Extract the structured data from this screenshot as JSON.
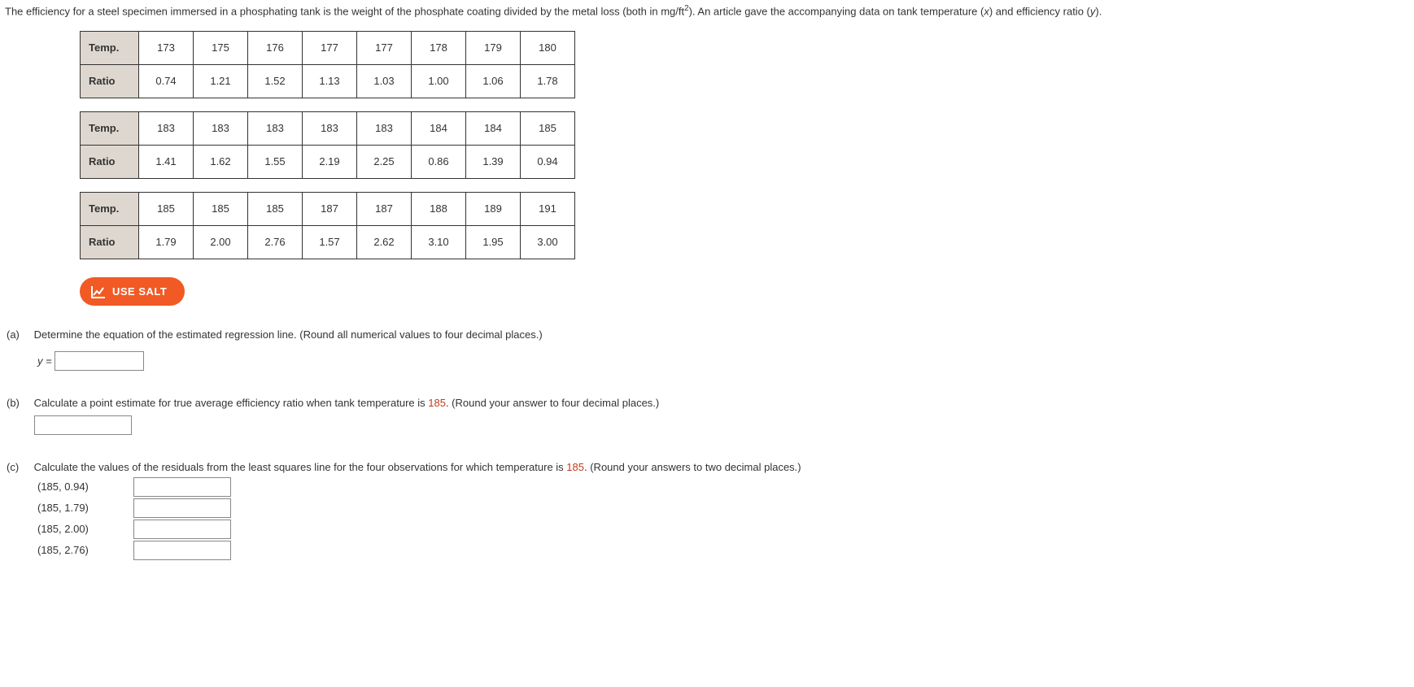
{
  "intro": {
    "text_before_sup": "The efficiency for a steel specimen immersed in a phosphating tank is the weight of the phosphate coating divided by the metal loss (both in mg/ft",
    "sup": "2",
    "text_after_sup": "). An article gave the accompanying data on tank temperature (",
    "var1": "x",
    "mid": ") and efficiency ratio (",
    "var2": "y",
    "end": ")."
  },
  "row_labels": {
    "temp": "Temp.",
    "ratio": "Ratio"
  },
  "tables": [
    {
      "temp": [
        "173",
        "175",
        "176",
        "177",
        "177",
        "178",
        "179",
        "180"
      ],
      "ratio": [
        "0.74",
        "1.21",
        "1.52",
        "1.13",
        "1.03",
        "1.00",
        "1.06",
        "1.78"
      ]
    },
    {
      "temp": [
        "183",
        "183",
        "183",
        "183",
        "183",
        "184",
        "184",
        "185"
      ],
      "ratio": [
        "1.41",
        "1.62",
        "1.55",
        "2.19",
        "2.25",
        "0.86",
        "1.39",
        "0.94"
      ]
    },
    {
      "temp": [
        "185",
        "185",
        "185",
        "187",
        "187",
        "188",
        "189",
        "191"
      ],
      "ratio": [
        "1.79",
        "2.00",
        "2.76",
        "1.57",
        "2.62",
        "3.10",
        "1.95",
        "3.00"
      ]
    }
  ],
  "salt_label": "USE SALT",
  "parts": {
    "a": {
      "label": "(a)",
      "text": "Determine the equation of the estimated regression line. (Round all numerical values to four decimal places.)",
      "lhs": "y ="
    },
    "b": {
      "label": "(b)",
      "before": "Calculate a point estimate for true average efficiency ratio when tank temperature is ",
      "num": "185",
      "after": ". (Round your answer to four decimal places.)"
    },
    "c": {
      "label": "(c)",
      "before": "Calculate the values of the residuals from the least squares line for the four observations for which temperature is ",
      "num": "185",
      "after": ". (Round your answers to two decimal places.)",
      "pairs": [
        "(185, 0.94)",
        "(185, 1.79)",
        "(185, 2.00)",
        "(185, 2.76)"
      ]
    }
  }
}
